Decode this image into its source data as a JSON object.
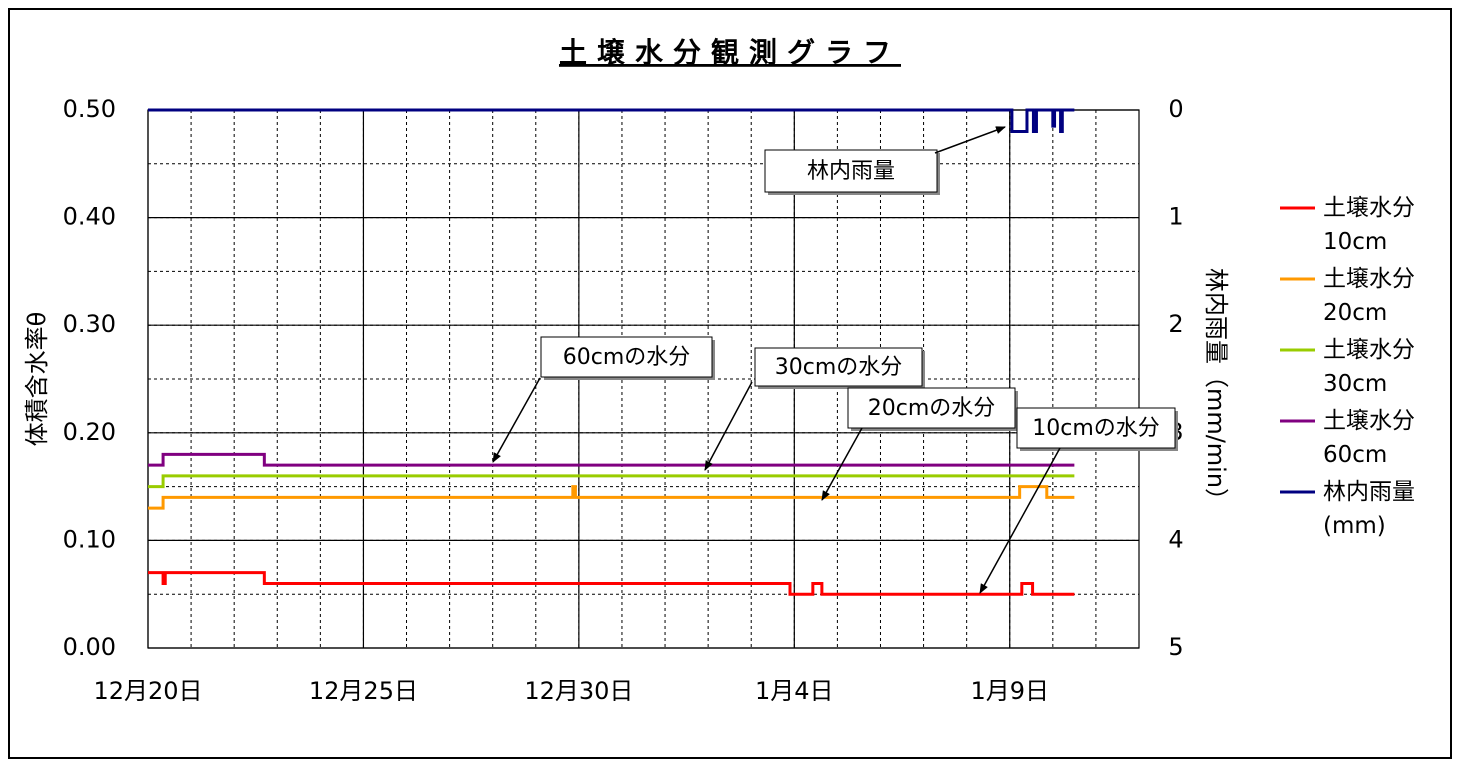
{
  "chart_data": {
    "type": "line",
    "title": "土壌水分観測グラフ",
    "y_label": "体積含水率θ",
    "y2_label": "林内雨量（mm/min）",
    "xlim": [
      0,
      23
    ],
    "xticks": [
      {
        "value": 0,
        "label": "12月20日"
      },
      {
        "value": 5,
        "label": "12月25日"
      },
      {
        "value": 10,
        "label": "12月30日"
      },
      {
        "value": 15,
        "label": "1月4日"
      },
      {
        "value": 20,
        "label": "1月9日"
      }
    ],
    "x_minor_step": 1,
    "ylim": [
      0,
      0.5
    ],
    "yticks": [
      {
        "value": 0,
        "label": "0.00"
      },
      {
        "value": 0.1,
        "label": "0.10"
      },
      {
        "value": 0.2,
        "label": "0.20"
      },
      {
        "value": 0.3,
        "label": "0.30"
      },
      {
        "value": 0.4,
        "label": "0.40"
      },
      {
        "value": 0.5,
        "label": "0.50"
      }
    ],
    "y_minor_step": 0.05,
    "y2lim": [
      5,
      0
    ],
    "y2ticks": [
      0,
      1,
      2,
      3,
      4,
      5
    ],
    "grid": true,
    "legend": "right",
    "series": [
      {
        "name": "土壌水分10cm",
        "color": "#ff0000",
        "x": [
          0,
          0.35,
          0.35,
          0.4,
          0.4,
          2.7,
          2.7,
          14.9,
          14.9,
          15.43,
          15.43,
          15.64,
          15.64,
          20.28,
          20.28,
          20.53,
          20.53,
          21.5
        ],
        "values": [
          0.07,
          0.07,
          0.06,
          0.06,
          0.07,
          0.07,
          0.06,
          0.06,
          0.05,
          0.05,
          0.06,
          0.06,
          0.05,
          0.05,
          0.06,
          0.06,
          0.05,
          0.05
        ]
      },
      {
        "name": "土壌水分20cm",
        "color": "#ff9900",
        "x": [
          0,
          0.35,
          0.35,
          9.86,
          9.86,
          9.92,
          9.92,
          20.23,
          20.23,
          20.86,
          20.86,
          21.5
        ],
        "values": [
          0.13,
          0.13,
          0.14,
          0.14,
          0.15,
          0.15,
          0.14,
          0.14,
          0.15,
          0.15,
          0.14,
          0.14
        ]
      },
      {
        "name": "土壌水分30cm",
        "color": "#99cc00",
        "x": [
          0,
          0.35,
          0.35,
          21.5
        ],
        "values": [
          0.15,
          0.15,
          0.16,
          0.16
        ]
      },
      {
        "name": "土壌水分60cm",
        "color": "#800080",
        "x": [
          0,
          0.35,
          0.35,
          2.7,
          2.7,
          21.5
        ],
        "values": [
          0.17,
          0.17,
          0.18,
          0.18,
          0.17,
          0.17
        ]
      },
      {
        "name": "林内雨量(mm)",
        "color": "#000080",
        "axis": "y2",
        "x": [
          0,
          20.05,
          20.05,
          20.4,
          20.4,
          20.55,
          20.55,
          20.62,
          20.62,
          21.0,
          21.0,
          21.04,
          21.04,
          21.18,
          21.18,
          21.22,
          21.22,
          21.5
        ],
        "values": [
          0,
          0,
          0.2,
          0.2,
          0,
          0,
          0.2,
          0.2,
          0,
          0,
          0.15,
          0.15,
          0,
          0,
          0.2,
          0.2,
          0,
          0
        ]
      }
    ],
    "annotations": [
      "林内雨量",
      "60cmの水分",
      "30cmの水分",
      "20cmの水分",
      "10cmの水分"
    ]
  }
}
